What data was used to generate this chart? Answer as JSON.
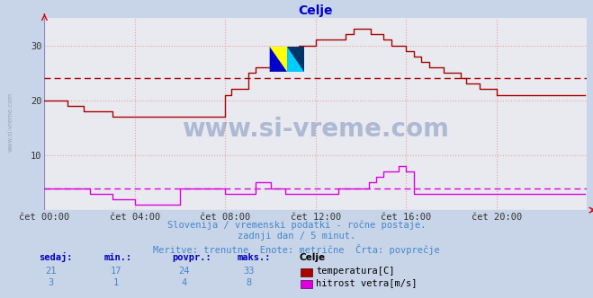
{
  "title": "Celje",
  "title_color": "#0000cc",
  "bg_color": "#c8d4e8",
  "plot_bg_color": "#e8eaf0",
  "grid_color": "#e8a0a0",
  "axis_color": "#cc0000",
  "watermark": "www.si-vreme.com",
  "watermark_color": "#1a3a8a",
  "watermark_alpha": 0.28,
  "ylim": [
    0,
    35
  ],
  "yticks": [
    10,
    20,
    30
  ],
  "xmin": 0,
  "xmax": 288,
  "xtick_positions": [
    0,
    48,
    96,
    144,
    192,
    240
  ],
  "xtick_labels": [
    "čet 00:00",
    "čet 04:00",
    "čet 08:00",
    "čet 12:00",
    "čet 16:00",
    "čet 20:00"
  ],
  "temp_avg": 24,
  "wind_avg": 4,
  "temp_color": "#aa0000",
  "wind_color": "#dd00dd",
  "subtitle1": "Slovenija / vremenski podatki - ročne postaje.",
  "subtitle2": "zadnji dan / 5 minut.",
  "subtitle3": "Meritve: trenutne  Enote: metrične  Črta: povprečje",
  "subtitle_color": "#4488cc",
  "stats_label_color": "#0000bb",
  "stats_value_color": "#4488cc",
  "stats": {
    "sedaj": {
      "temp": 21,
      "wind": 3
    },
    "min": {
      "temp": 17,
      "wind": 1
    },
    "povpr": {
      "temp": 24,
      "wind": 4
    },
    "maks": {
      "temp": 33,
      "wind": 8
    }
  },
  "temp_data": [
    20,
    20,
    20,
    20,
    20,
    20,
    20,
    20,
    20,
    20,
    20,
    20,
    19,
    19,
    19,
    19,
    19,
    19,
    19,
    19,
    19,
    18,
    18,
    18,
    18,
    18,
    18,
    18,
    18,
    18,
    18,
    18,
    18,
    18,
    18,
    18,
    17,
    17,
    17,
    17,
    17,
    17,
    17,
    17,
    17,
    17,
    17,
    17,
    17,
    17,
    17,
    17,
    17,
    17,
    17,
    17,
    17,
    17,
    17,
    17,
    17,
    17,
    17,
    17,
    17,
    17,
    17,
    17,
    17,
    17,
    17,
    17,
    17,
    17,
    17,
    17,
    17,
    17,
    17,
    17,
    17,
    17,
    17,
    17,
    17,
    17,
    17,
    17,
    17,
    17,
    17,
    17,
    17,
    17,
    17,
    17,
    21,
    21,
    21,
    22,
    22,
    22,
    22,
    22,
    22,
    22,
    22,
    22,
    25,
    25,
    25,
    25,
    26,
    26,
    26,
    26,
    26,
    26,
    26,
    26,
    28,
    28,
    28,
    28,
    28,
    28,
    28,
    28,
    28,
    28,
    28,
    28,
    29,
    29,
    29,
    30,
    30,
    30,
    30,
    30,
    30,
    30,
    30,
    30,
    31,
    31,
    31,
    31,
    31,
    31,
    31,
    31,
    31,
    31,
    31,
    31,
    31,
    31,
    31,
    31,
    32,
    32,
    32,
    32,
    33,
    33,
    33,
    33,
    33,
    33,
    33,
    33,
    33,
    32,
    32,
    32,
    32,
    32,
    32,
    32,
    31,
    31,
    31,
    31,
    30,
    30,
    30,
    30,
    30,
    30,
    30,
    30,
    29,
    29,
    29,
    29,
    28,
    28,
    28,
    28,
    27,
    27,
    27,
    27,
    26,
    26,
    26,
    26,
    26,
    26,
    26,
    26,
    25,
    25,
    25,
    25,
    25,
    25,
    25,
    25,
    25,
    24,
    24,
    24,
    23,
    23,
    23,
    23,
    23,
    23,
    23,
    22,
    22,
    22,
    22,
    22,
    22,
    22,
    22,
    22,
    21,
    21,
    21,
    21,
    21,
    21,
    21,
    21,
    21,
    21,
    21,
    21,
    21,
    21,
    21,
    21,
    21,
    21,
    21,
    21,
    21,
    21,
    21,
    21,
    21,
    21,
    21,
    21,
    21,
    21,
    21,
    21,
    21,
    21,
    21,
    21,
    21,
    21,
    21,
    21,
    21,
    21,
    21,
    21,
    21,
    21,
    21,
    21
  ],
  "wind_data": [
    4,
    4,
    4,
    4,
    4,
    4,
    4,
    4,
    4,
    4,
    4,
    4,
    4,
    4,
    4,
    4,
    4,
    4,
    4,
    4,
    4,
    4,
    4,
    4,
    3,
    3,
    3,
    3,
    3,
    3,
    3,
    3,
    3,
    3,
    3,
    3,
    2,
    2,
    2,
    2,
    2,
    2,
    2,
    2,
    2,
    2,
    2,
    2,
    1,
    1,
    1,
    1,
    1,
    1,
    1,
    1,
    1,
    1,
    1,
    1,
    1,
    1,
    1,
    1,
    1,
    1,
    1,
    1,
    1,
    1,
    1,
    1,
    4,
    4,
    4,
    4,
    4,
    4,
    4,
    4,
    4,
    4,
    4,
    4,
    4,
    4,
    4,
    4,
    4,
    4,
    4,
    4,
    4,
    4,
    4,
    4,
    3,
    3,
    3,
    3,
    3,
    3,
    3,
    3,
    3,
    3,
    3,
    3,
    3,
    3,
    3,
    3,
    5,
    5,
    5,
    5,
    5,
    5,
    5,
    5,
    4,
    4,
    4,
    4,
    4,
    4,
    4,
    4,
    3,
    3,
    3,
    3,
    3,
    3,
    3,
    3,
    3,
    3,
    3,
    3,
    3,
    3,
    3,
    3,
    3,
    3,
    3,
    3,
    3,
    3,
    3,
    3,
    3,
    3,
    3,
    3,
    4,
    4,
    4,
    4,
    4,
    4,
    4,
    4,
    4,
    4,
    4,
    4,
    4,
    4,
    4,
    4,
    5,
    5,
    5,
    5,
    6,
    6,
    6,
    6,
    7,
    7,
    7,
    7,
    7,
    7,
    7,
    7,
    8,
    8,
    8,
    8,
    7,
    7,
    7,
    7,
    3,
    3,
    3,
    3,
    3,
    3,
    3,
    3,
    3,
    3,
    3,
    3,
    3,
    3,
    3,
    3,
    3,
    3,
    3,
    3,
    3,
    3,
    3,
    3,
    3,
    3,
    3,
    3,
    3,
    3,
    3,
    3,
    3,
    3,
    3,
    3,
    3,
    3,
    3,
    3,
    3,
    3,
    3,
    3,
    3,
    3,
    3,
    3,
    3,
    3,
    3,
    3,
    3,
    3,
    3,
    3,
    3,
    3,
    3,
    3,
    3,
    3,
    3,
    3,
    3,
    3,
    3,
    3,
    3,
    3,
    3,
    3,
    3,
    3,
    3,
    3,
    3,
    3,
    3,
    3,
    3,
    3,
    3,
    3,
    3,
    3,
    3,
    3,
    3,
    3,
    3,
    3
  ]
}
